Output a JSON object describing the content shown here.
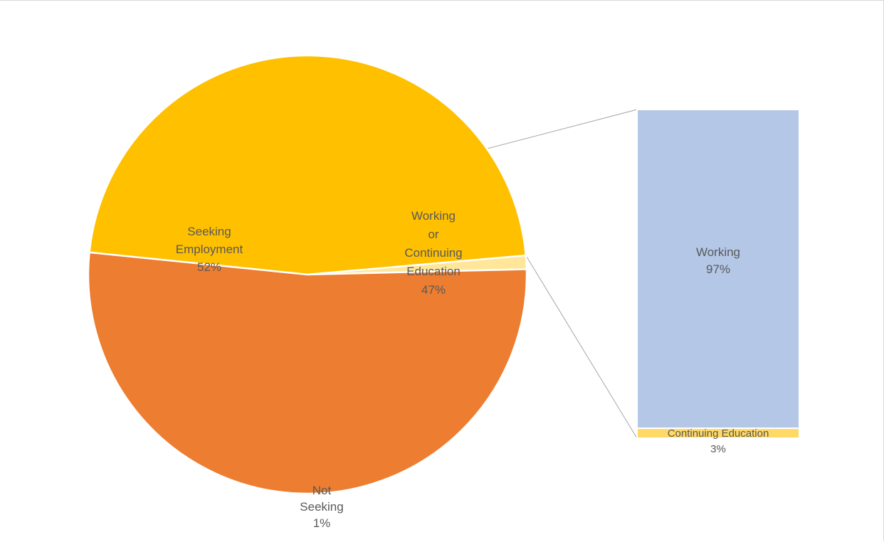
{
  "chart_data": {
    "type": "pie",
    "subtype": "bar-of-pie",
    "colors": {
      "Seeking Employment": "#ED7D31",
      "Working or Continuing Education": "#FFC000",
      "Not Seeking": "#FFE699",
      "Working": "#B4C7E7",
      "Continuing Education": "#FFD966",
      "connector": "#a6a6a6",
      "frame": "#d9d9d9",
      "label": "#595959"
    },
    "pie": {
      "slices": [
        {
          "key": "seeking",
          "label_lines": [
            "Seeking",
            "Employment"
          ],
          "pct_label": "52%",
          "value": 52
        },
        {
          "key": "working_or_cont",
          "label_lines": [
            "Working",
            "or",
            "Continuing",
            "Education"
          ],
          "pct_label": "47%",
          "value": 47
        },
        {
          "key": "not_seeking",
          "label_lines": [
            "Not",
            "Seeking"
          ],
          "pct_label": "1%",
          "value": 1
        }
      ]
    },
    "bar": {
      "stack_of": "Working or Continuing Education",
      "segments": [
        {
          "key": "working",
          "label_lines": [
            "Working"
          ],
          "pct_label": "97%",
          "value": 97
        },
        {
          "key": "continuing",
          "label_lines": [
            "Continuing Education"
          ],
          "pct_label": "3%",
          "value": 3
        }
      ]
    }
  }
}
